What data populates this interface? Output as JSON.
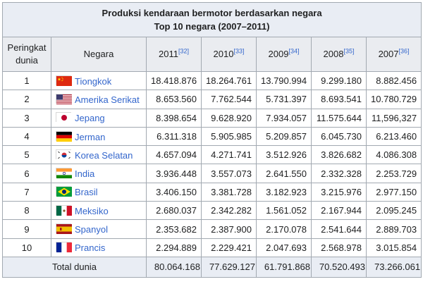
{
  "table": {
    "title_line1": "Produksi kendaraan bermotor berdasarkan negara",
    "title_line2": "Top 10 negara (2007–2011)",
    "headers": {
      "rank_line1": "Peringkat",
      "rank_line2": "dunia",
      "country": "Negara",
      "years": [
        {
          "year": "2011",
          "ref": "[32]"
        },
        {
          "year": "2010",
          "ref": "[33]"
        },
        {
          "year": "2009",
          "ref": "[34]"
        },
        {
          "year": "2008",
          "ref": "[35]"
        },
        {
          "year": "2007",
          "ref": "[36]"
        }
      ]
    },
    "rows": [
      {
        "rank": "1",
        "country": "Tiongkok",
        "flag": "china-flag-icon",
        "values": [
          "18.418.876",
          "18.264.761",
          "13.790.994",
          "9.299.180",
          "8.882.456"
        ]
      },
      {
        "rank": "2",
        "country": "Amerika Serikat",
        "flag": "usa-flag-icon",
        "values": [
          "8.653.560",
          "7.762.544",
          "5.731.397",
          "8.693.541",
          "10.780.729"
        ]
      },
      {
        "rank": "3",
        "country": "Jepang",
        "flag": "japan-flag-icon",
        "values": [
          "8.398.654",
          "9.628.920",
          "7.934.057",
          "11.575.644",
          "11,596,327"
        ]
      },
      {
        "rank": "4",
        "country": "Jerman",
        "flag": "germany-flag-icon",
        "values": [
          "6.311.318",
          "5.905.985",
          "5.209.857",
          "6.045.730",
          "6.213.460"
        ]
      },
      {
        "rank": "5",
        "country": "Korea Selatan",
        "flag": "south-korea-flag-icon",
        "values": [
          "4.657.094",
          "4.271.741",
          "3.512.926",
          "3.826.682",
          "4.086.308"
        ]
      },
      {
        "rank": "6",
        "country": "India",
        "flag": "india-flag-icon",
        "values": [
          "3.936.448",
          "3.557.073",
          "2.641.550",
          "2.332.328",
          "2.253.729"
        ]
      },
      {
        "rank": "7",
        "country": "Brasil",
        "flag": "brazil-flag-icon",
        "values": [
          "3.406.150",
          "3.381.728",
          "3.182.923",
          "3.215.976",
          "2.977.150"
        ]
      },
      {
        "rank": "8",
        "country": "Meksiko",
        "flag": "mexico-flag-icon",
        "values": [
          "2.680.037",
          "2.342.282",
          "1.561.052",
          "2.167.944",
          "2.095.245"
        ]
      },
      {
        "rank": "9",
        "country": "Spanyol",
        "flag": "spain-flag-icon",
        "values": [
          "2.353.682",
          "2.387.900",
          "2.170.078",
          "2.541.644",
          "2.889.703"
        ]
      },
      {
        "rank": "10",
        "country": "Prancis",
        "flag": "france-flag-icon",
        "values": [
          "2.294.889",
          "2.229.421",
          "2.047.693",
          "2.568.978",
          "3.015.854"
        ]
      }
    ],
    "total": {
      "label": "Total dunia",
      "values": [
        "80.064.168",
        "77.629.127",
        "61.791.868",
        "70.520.493",
        "73.266.061"
      ]
    }
  }
}
